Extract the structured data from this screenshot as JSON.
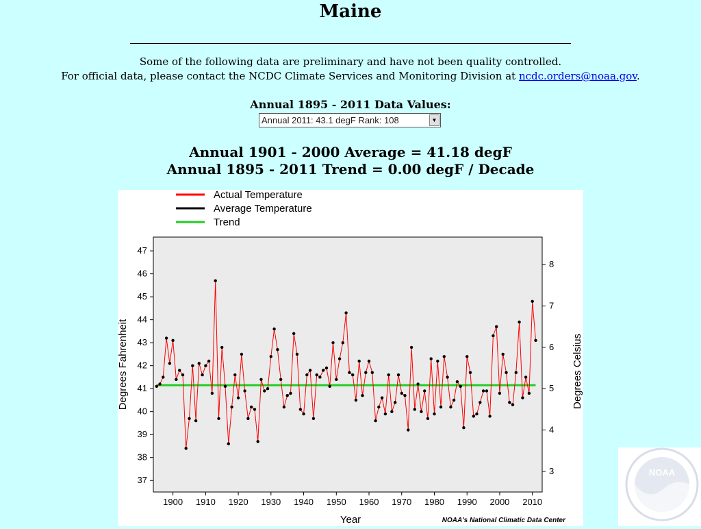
{
  "page": {
    "title": "Maine",
    "notice_line1": "Some of the following data are preliminary and have not been quality controlled.",
    "notice_line2_prefix": "For official data, please contact the NCDC Climate Services and Monitoring Division at ",
    "notice_email": "ncdc.orders@noaa.gov",
    "notice_line2_suffix": ".",
    "data_values_heading": "Annual 1895 - 2011 Data Values:",
    "selected_value": "Annual 2011: 43.1 degF  Rank: 108",
    "average_line": "Annual 1901 - 2000 Average = 41.18 degF",
    "trend_line": "Annual 1895 - 2011 Trend = 0.00 degF / Decade",
    "noaa_logo_text": "NOAA"
  },
  "chart_data": {
    "type": "line",
    "credit": "NOAA's National Climatic Data Center",
    "xlabel": "Year",
    "ylabel": "Degrees Fahrenheit",
    "ylabel_right": "Degrees Celsius",
    "xlim": [
      1894,
      2013
    ],
    "ylim": [
      36.5,
      47.6
    ],
    "x_ticks": [
      "1900",
      "1910",
      "1920",
      "1930",
      "1940",
      "1950",
      "1960",
      "1970",
      "1980",
      "1990",
      "2000",
      "2010"
    ],
    "y_ticks": [
      "37",
      "38",
      "39",
      "40",
      "41",
      "42",
      "43",
      "44",
      "45",
      "46",
      "47"
    ],
    "y_ticks_right": [
      "3",
      "4",
      "5",
      "6",
      "7",
      "8"
    ],
    "legend": {
      "placement": "top-left",
      "entries": [
        {
          "label": "Actual Temperature",
          "color": "#ff0000"
        },
        {
          "label": "Average Temperature",
          "color": "#000000"
        },
        {
          "label": "Trend",
          "color": "#22cc22"
        }
      ]
    },
    "colors": {
      "actual": "#ff0000",
      "trend": "#22cc22",
      "plot_bg": "#ebebeb",
      "marker": "#000000"
    },
    "average": 41.18,
    "trend": {
      "x": [
        1895,
        2011
      ],
      "y": [
        41.15,
        41.15
      ]
    },
    "series": [
      {
        "name": "Actual Temperature",
        "x_start": 1895,
        "values": [
          41.1,
          41.2,
          41.5,
          43.2,
          42.1,
          43.1,
          41.4,
          41.8,
          41.6,
          38.4,
          39.7,
          42.0,
          39.6,
          42.1,
          41.6,
          42.0,
          42.2,
          40.8,
          45.7,
          39.7,
          42.8,
          41.1,
          38.6,
          40.2,
          41.6,
          40.6,
          42.5,
          40.9,
          39.7,
          40.2,
          40.1,
          38.7,
          41.4,
          40.9,
          41.0,
          42.4,
          43.6,
          42.7,
          41.4,
          40.2,
          40.7,
          40.8,
          43.4,
          42.5,
          40.1,
          39.9,
          41.6,
          41.8,
          39.7,
          41.6,
          41.5,
          41.8,
          41.9,
          41.1,
          43.0,
          41.4,
          42.3,
          43.0,
          44.3,
          41.7,
          41.6,
          40.5,
          42.2,
          40.7,
          41.7,
          42.2,
          41.7,
          39.6,
          40.2,
          40.6,
          39.9,
          41.6,
          40.0,
          40.4,
          41.6,
          40.8,
          40.7,
          39.2,
          42.8,
          40.1,
          41.2,
          40.0,
          40.9,
          39.7,
          42.3,
          39.9,
          42.2,
          40.2,
          42.4,
          41.5,
          40.2,
          40.5,
          41.3,
          41.1,
          39.3,
          42.4,
          41.7,
          39.8,
          39.9,
          40.4,
          40.9,
          40.9,
          39.8,
          43.3,
          43.7,
          40.8,
          42.5,
          41.7,
          40.4,
          40.3,
          41.7,
          43.9,
          40.6,
          41.5,
          40.8,
          44.8,
          43.1
        ]
      }
    ]
  }
}
